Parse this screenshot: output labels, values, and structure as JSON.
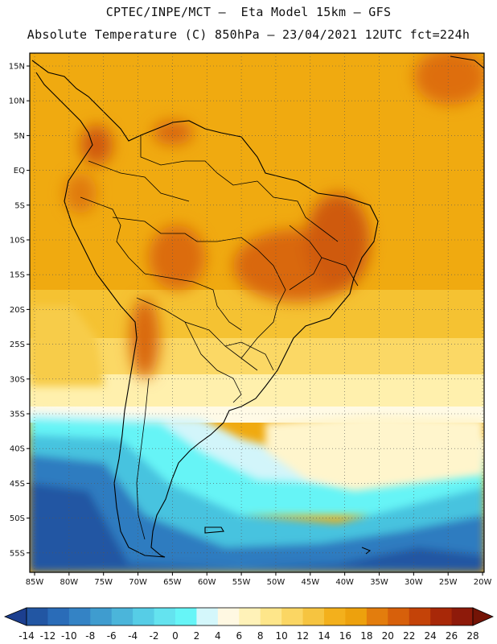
{
  "header": {
    "line1": "CPTEC/INPE/MCT –  Eta Model 15km – GFS",
    "line2": "Absolute Temperature (C) 850hPa – 23/04/2021 12UTC fct=224h"
  },
  "map": {
    "lat_labels": [
      "15N",
      "10N",
      "5N",
      "EQ",
      "5S",
      "10S",
      "15S",
      "20S",
      "25S",
      "30S",
      "35S",
      "40S",
      "45S",
      "50S",
      "55S"
    ],
    "lon_labels": [
      "85W",
      "80W",
      "75W",
      "70W",
      "65W",
      "60W",
      "55W",
      "50W",
      "45W",
      "40W",
      "35W",
      "30W",
      "25W",
      "20W"
    ]
  },
  "colorbar": {
    "ticks": [
      "-14",
      "-12",
      "-10",
      "-8",
      "-6",
      "-4",
      "-2",
      "0",
      "2",
      "4",
      "6",
      "8",
      "10",
      "12",
      "14",
      "16",
      "18",
      "20",
      "22",
      "24",
      "26",
      "28"
    ],
    "colors": [
      "#1c3f8f",
      "#2256a3",
      "#2a6cb8",
      "#3483c5",
      "#3f9ccf",
      "#4bb5da",
      "#56cde6",
      "#64e3ef",
      "#66f5f7",
      "#d4f7fb",
      "#fff8e2",
      "#fff2b8",
      "#fee68a",
      "#fbd663",
      "#f6c440",
      "#f3b01c",
      "#eda10d",
      "#e37d0d",
      "#d7600b",
      "#c44308",
      "#a82808",
      "#8e1a0a",
      "#741406"
    ]
  }
}
